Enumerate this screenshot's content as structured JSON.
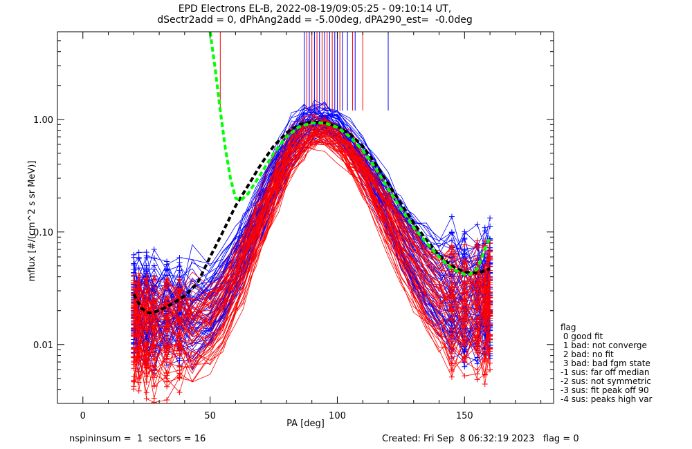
{
  "header": {
    "title_line1": "EPD Electrons EL-B, 2022-08-19/09:05:25 - 09:10:14 UT,",
    "title_line2": "dSectr2add = 0, dPhAng2add = -5.00deg, dPA290_est=  -0.0deg"
  },
  "footer": {
    "left": "nspininsum =  1  sectors = 16",
    "right": "Created: Fri Sep  8 06:32:19 2023   flag = 0"
  },
  "flag_legend": {
    "title": "flag",
    "items": [
      " 0 good fit",
      " 1 bad: not converge",
      " 2 bad: no fit",
      " 3 bad: bad fgm state",
      "-1 sus: far off median",
      "-2 sus: not symmetric",
      "-3 sus: fit peak off 90",
      "-4 sus: peaks high var"
    ]
  },
  "colors": {
    "red": "#ff0000",
    "blue": "#0000ff",
    "green_fit": "#00ff00",
    "black_fit": "#000000"
  },
  "chart_data": {
    "type": "line",
    "xlabel": "PA [deg]",
    "ylabel": "mflux [#/(cm^2 s sr MeV)]",
    "xlim": [
      -10,
      185
    ],
    "ylim": [
      0.003,
      6.0
    ],
    "yscale": "log",
    "xticks": [
      0,
      50,
      100,
      150
    ],
    "yticks": [
      0.01,
      0.1,
      1.0
    ],
    "ytick_labels": [
      "0.01",
      "0.10",
      "1.00"
    ],
    "pa_grid": [
      20,
      22,
      25,
      28,
      33,
      38,
      43,
      50,
      55,
      60,
      63,
      68,
      72,
      77,
      82,
      87,
      91,
      95,
      100,
      105,
      110,
      115,
      120,
      125,
      130,
      135,
      140,
      145,
      150,
      155,
      158,
      160
    ],
    "series": [
      {
        "color": "black_fit",
        "x": [
          20,
          23,
          26,
          30,
          35,
          40,
          45,
          50,
          55,
          60,
          65,
          70,
          75,
          80,
          85,
          90,
          95,
          100,
          105,
          110,
          115,
          120,
          125,
          130,
          135,
          140,
          145,
          150,
          155,
          160
        ],
        "y": [
          0.028,
          0.021,
          0.019,
          0.02,
          0.023,
          0.027,
          0.035,
          0.06,
          0.1,
          0.17,
          0.26,
          0.4,
          0.58,
          0.76,
          0.9,
          0.95,
          0.93,
          0.87,
          0.74,
          0.58,
          0.4,
          0.27,
          0.18,
          0.12,
          0.085,
          0.062,
          0.05,
          0.044,
          0.043,
          0.047
        ]
      },
      {
        "color": "green_fit",
        "x": [
          50,
          52,
          54,
          56,
          58,
          60,
          62,
          65,
          70,
          75,
          80,
          85,
          90,
          95,
          100,
          105,
          110,
          115,
          120,
          125,
          130,
          135,
          140,
          145,
          150,
          152,
          155,
          158,
          160
        ],
        "y": [
          6.0,
          2.8,
          1.2,
          0.55,
          0.3,
          0.2,
          0.19,
          0.22,
          0.33,
          0.5,
          0.7,
          0.86,
          0.93,
          0.93,
          0.85,
          0.7,
          0.53,
          0.37,
          0.24,
          0.16,
          0.11,
          0.08,
          0.06,
          0.047,
          0.042,
          0.042,
          0.047,
          0.07,
          0.09
        ]
      }
    ],
    "trace_groups": [
      {
        "color": "blue",
        "count": 62,
        "peak_range": [
          0.7,
          1.3
        ],
        "low_left": [
          0.01,
          0.05
        ],
        "low_right": [
          0.01,
          0.08
        ]
      },
      {
        "color": "red",
        "count": 55,
        "peak_range": [
          0.62,
          1.0
        ],
        "low_left": [
          0.005,
          0.03
        ],
        "low_right": [
          0.006,
          0.05
        ]
      }
    ],
    "top_ticks": {
      "x_values": [
        87,
        88,
        89,
        90,
        91,
        92,
        93,
        94,
        95,
        96,
        97,
        98,
        99,
        100,
        101,
        102,
        104,
        106,
        107,
        110,
        120,
        54
      ],
      "colors": [
        "blue",
        "red",
        "blue",
        "red",
        "blue",
        "red",
        "blue",
        "red",
        "blue",
        "red",
        "blue",
        "red",
        "blue",
        "blue",
        "red",
        "blue",
        "blue",
        "red",
        "blue",
        "red",
        "blue",
        "red"
      ]
    }
  }
}
